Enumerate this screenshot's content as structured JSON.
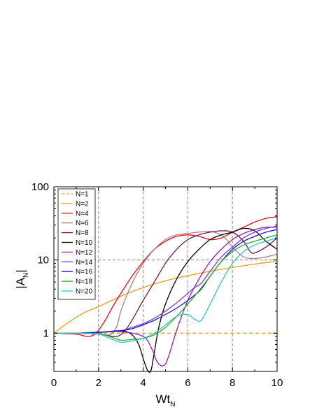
{
  "chart_data": {
    "type": "line",
    "xlabel": "Wt",
    "xlabel_sub": "N",
    "ylabel": "|A",
    "ylabel_sub": "N",
    "ylabel_end": "|",
    "xlim": [
      0,
      10
    ],
    "ylim": [
      0.3,
      100
    ],
    "yscale": "log",
    "xticks": [
      "0",
      "2",
      "4",
      "6",
      "8",
      "10"
    ],
    "yticks": [
      "1",
      "10",
      "100"
    ],
    "grid": "dashed gray at x=2,4,6,8 and y=10",
    "legend_position": "top-left",
    "series": [
      {
        "name": "N=1",
        "color": "#f5a020",
        "dashed": true,
        "x": [
          0,
          10
        ],
        "y": [
          1,
          1
        ]
      },
      {
        "name": "N=2",
        "color": "#f39c12",
        "dashed": false,
        "x": [
          0,
          0.5,
          1,
          1.5,
          2,
          3,
          4,
          5,
          6,
          7,
          8,
          9,
          10
        ],
        "y": [
          1.0,
          1.3,
          1.65,
          2.0,
          2.3,
          3.2,
          4.2,
          5.2,
          6.1,
          7.0,
          7.9,
          8.8,
          9.6
        ]
      },
      {
        "name": "N=4",
        "color": "#e31010",
        "dashed": false,
        "x": [
          0,
          1,
          1.5,
          1.8,
          2,
          2.3,
          2.6,
          3,
          3.5,
          4,
          4.5,
          5,
          5.5,
          6,
          6.5,
          7,
          7.5,
          8,
          8.5,
          9,
          9.5,
          10
        ],
        "y": [
          1.0,
          0.97,
          0.9,
          0.95,
          1.1,
          1.5,
          2.2,
          3.5,
          6.0,
          9.5,
          14,
          18,
          21,
          22,
          21,
          19,
          20,
          24,
          28,
          33,
          37,
          39
        ]
      },
      {
        "name": "N=6",
        "color": "#b08080",
        "dashed": false,
        "x": [
          0,
          1,
          2,
          2.5,
          2.8,
          3,
          3.3,
          3.6,
          4,
          4.5,
          5,
          5.5,
          6,
          6.5,
          7,
          7.5,
          7.8,
          8,
          8.5,
          9,
          9.5,
          10
        ],
        "y": [
          1.0,
          1.0,
          0.97,
          0.95,
          1.2,
          2.0,
          3.5,
          5.5,
          9.0,
          14,
          19,
          22,
          23,
          24,
          24.5,
          22,
          18,
          15,
          11,
          10.5,
          11,
          12
        ]
      },
      {
        "name": "N=8",
        "color": "#6e1a4a",
        "dashed": false,
        "x": [
          0,
          1,
          2,
          2.8,
          3.2,
          3.5,
          4,
          4.5,
          5,
          5.5,
          6,
          6.5,
          7,
          7.5,
          8,
          8.5,
          8.8,
          9,
          9.5,
          10
        ],
        "y": [
          1.0,
          1.0,
          0.98,
          0.9,
          1.1,
          1.5,
          2.8,
          5.0,
          9.0,
          14,
          19,
          22,
          24,
          25,
          24,
          18,
          13,
          12.5,
          15,
          20
        ]
      },
      {
        "name": "N=10",
        "color": "#000000",
        "dashed": false,
        "x": [
          0,
          1,
          2,
          3,
          3.5,
          3.8,
          4.0,
          4.2,
          4.35,
          4.5,
          4.7,
          5,
          5.5,
          6,
          6.5,
          7,
          7.5,
          8,
          8.5,
          9,
          9.5,
          10
        ],
        "y": [
          1.0,
          1.0,
          1.02,
          1.08,
          0.95,
          0.7,
          0.45,
          0.31,
          0.31,
          0.55,
          1.2,
          2.5,
          5.5,
          9.5,
          14,
          19,
          22,
          24,
          27,
          25,
          18,
          14
        ]
      },
      {
        "name": "N=12",
        "color": "#9a18b4",
        "dashed": false,
        "x": [
          0,
          1,
          2,
          3,
          4,
          4.4,
          4.6,
          4.8,
          5,
          5.2,
          5.5,
          6,
          6.5,
          7,
          7.5,
          8,
          8.5,
          9,
          9.5,
          10
        ],
        "y": [
          1.0,
          1.0,
          1.02,
          1.05,
          0.9,
          0.6,
          0.42,
          0.36,
          0.38,
          0.55,
          1.1,
          2.8,
          5.5,
          9.5,
          14,
          19,
          23,
          26,
          28,
          28
        ]
      },
      {
        "name": "N=14",
        "color": "#7a3ae0",
        "dashed": false,
        "x": [
          0,
          1,
          2,
          3,
          3.5,
          4,
          4.5,
          5,
          5.5,
          6,
          6.3,
          6.6,
          7,
          7.5,
          8,
          8.5,
          9,
          9.5,
          10
        ],
        "y": [
          1.0,
          1.0,
          1.03,
          1.08,
          1.2,
          1.35,
          1.6,
          2.0,
          2.6,
          3.5,
          4.2,
          4.8,
          7.0,
          11,
          15,
          20,
          24,
          27,
          29
        ]
      },
      {
        "name": "N=16",
        "color": "#1818d8",
        "dashed": false,
        "x": [
          0,
          1,
          2,
          3,
          3.5,
          4,
          4.5,
          5,
          5.5,
          6,
          6.3,
          6.6,
          7,
          7.5,
          8,
          8.5,
          9,
          9.5,
          10
        ],
        "y": [
          1.0,
          1.0,
          1.03,
          1.08,
          1.15,
          1.3,
          1.5,
          1.8,
          2.2,
          2.8,
          3.3,
          4.0,
          6.0,
          9.5,
          14,
          18,
          21,
          24,
          26
        ]
      },
      {
        "name": "N=18",
        "color": "#2aaa2a",
        "dashed": false,
        "x": [
          0,
          1,
          2,
          2.5,
          3,
          3.5,
          4,
          4.5,
          5,
          5.5,
          6,
          6.5,
          7,
          7.5,
          8,
          8.5,
          9,
          9.5,
          10
        ],
        "y": [
          1.0,
          1.0,
          0.98,
          0.9,
          0.8,
          0.82,
          0.85,
          0.95,
          1.2,
          1.7,
          2.5,
          3.8,
          6.0,
          9.5,
          13,
          16,
          18,
          20,
          22
        ]
      },
      {
        "name": "N=20",
        "color": "#30c8c8",
        "dashed": false,
        "x": [
          0,
          1,
          2,
          2.5,
          3,
          3.5,
          4,
          4.5,
          5,
          5.5,
          6,
          6.3,
          6.6,
          7,
          7.5,
          8,
          8.5,
          9,
          9.5,
          10
        ],
        "y": [
          1.0,
          1.0,
          0.97,
          0.85,
          0.75,
          0.78,
          0.85,
          1.0,
          1.3,
          1.7,
          1.8,
          1.55,
          1.5,
          2.5,
          5.0,
          9.0,
          13,
          16,
          18,
          20
        ]
      }
    ]
  }
}
